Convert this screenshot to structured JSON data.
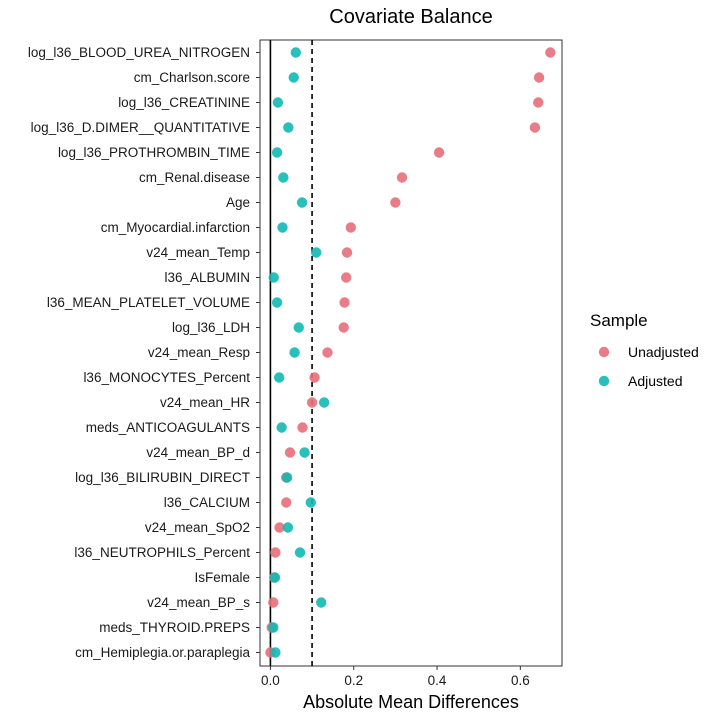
{
  "chart_data": {
    "type": "scatter",
    "title": "Covariate Balance",
    "xlabel": "Absolute Mean Differences",
    "ylabel": "",
    "xlim": [
      -0.025,
      0.7
    ],
    "x_ticks": [
      0.0,
      0.2,
      0.4,
      0.6
    ],
    "x_tick_labels": [
      "0.0",
      "0.2",
      "0.4",
      "0.6"
    ],
    "reference_lines": [
      {
        "x": 0.0,
        "style": "solid"
      },
      {
        "x": 0.1,
        "style": "dashed"
      }
    ],
    "legend_title": "Sample",
    "legend_position": "right",
    "grid": false,
    "categories": [
      "log_l36_BLOOD_UREA_NITROGEN",
      "cm_Charlson.score",
      "log_l36_CREATININE",
      "log_l36_D.DIMER__QUANTITATIVE",
      "log_l36_PROTHROMBIN_TIME",
      "cm_Renal.disease",
      "Age",
      "cm_Myocardial.infarction",
      "v24_mean_Temp",
      "l36_ALBUMIN",
      "l36_MEAN_PLATELET_VOLUME",
      "log_l36_LDH",
      "v24_mean_Resp",
      "l36_MONOCYTES_Percent",
      "v24_mean_HR",
      "meds_ANTICOAGULANTS",
      "v24_mean_BP_d",
      "log_l36_BILIRUBIN_DIRECT",
      "l36_CALCIUM",
      "v24_mean_SpO2",
      "l36_NEUTROPHILS_Percent",
      "IsFemale",
      "v24_mean_BP_s",
      "meds_THYROID.PREPS",
      "cm_Hemiplegia.or.paraplegia"
    ],
    "series": [
      {
        "name": "Unadjusted",
        "color": "#E76F7A",
        "values": [
          0.672,
          0.645,
          0.643,
          0.635,
          0.405,
          0.316,
          0.3,
          0.193,
          0.184,
          0.182,
          0.178,
          0.176,
          0.137,
          0.106,
          0.1,
          0.077,
          0.047,
          0.038,
          0.038,
          0.022,
          0.012,
          0.009,
          0.007,
          0.003,
          0.0
        ]
      },
      {
        "name": "Adjusted",
        "color": "#12B8B2",
        "values": [
          0.061,
          0.056,
          0.018,
          0.043,
          0.016,
          0.031,
          0.076,
          0.029,
          0.11,
          0.008,
          0.016,
          0.068,
          0.058,
          0.021,
          0.129,
          0.027,
          0.082,
          0.04,
          0.097,
          0.042,
          0.071,
          0.011,
          0.122,
          0.007,
          0.012
        ]
      }
    ]
  }
}
